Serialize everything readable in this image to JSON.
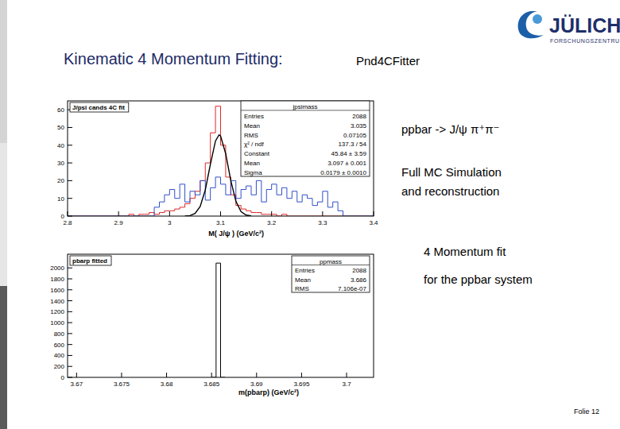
{
  "slide": {
    "title": "Kinematic 4 Momentum Fitting:",
    "subtitle": "Pnd4CFitter",
    "logo": {
      "name": "JÜLICH",
      "tagline": "FORSCHUNGSZENTRUM"
    },
    "notes": [
      "ppbar -> J/ψ π⁺π⁻",
      "Full MC Simulation",
      "and reconstruction",
      "4 Momentum fit",
      "for the ppbar system"
    ],
    "footer": "Folie 12"
  },
  "chart_data": [
    {
      "type": "histogram",
      "title": "J/psi cands 4C fit",
      "x_label": "M( J/ψ )    (GeV/c²)",
      "xlim": [
        2.8,
        3.4
      ],
      "xticks": [
        2.8,
        2.9,
        3,
        3.1,
        3.2,
        3.3,
        3.4
      ],
      "ylim": [
        0,
        65
      ],
      "yticks": [
        0,
        10,
        20,
        30,
        40,
        50,
        60
      ],
      "bins": [
        2.8,
        2.81,
        2.82,
        2.83,
        2.84,
        2.85,
        2.86,
        2.87,
        2.88,
        2.89,
        2.9,
        2.91,
        2.92,
        2.93,
        2.94,
        2.95,
        2.96,
        2.97,
        2.98,
        2.99,
        3.0,
        3.01,
        3.02,
        3.03,
        3.04,
        3.05,
        3.06,
        3.07,
        3.08,
        3.09,
        3.1,
        3.11,
        3.12,
        3.13,
        3.14,
        3.15,
        3.16,
        3.17,
        3.18,
        3.19,
        3.2,
        3.21,
        3.22,
        3.23,
        3.24,
        3.25,
        3.26,
        3.27,
        3.28,
        3.29,
        3.3,
        3.31,
        3.32,
        3.33,
        3.34,
        3.35,
        3.36,
        3.37,
        3.38,
        3.39,
        3.4
      ],
      "series": [
        {
          "color": "#e02828",
          "values": [
            0,
            0,
            0,
            0,
            0,
            0,
            0,
            0,
            0,
            0,
            0,
            0,
            1,
            0,
            1,
            1,
            2,
            1,
            2,
            3,
            3,
            4,
            5,
            7,
            10,
            14,
            20,
            30,
            47,
            62,
            40,
            22,
            12,
            6,
            4,
            3,
            2,
            2,
            1,
            1,
            1,
            0,
            1,
            0,
            0,
            0,
            0,
            0,
            0,
            0,
            0,
            0,
            0,
            0,
            0,
            0,
            0,
            0,
            0,
            0
          ]
        },
        {
          "color": "#3050c8",
          "values": [
            0,
            0,
            0,
            0,
            0,
            0,
            0,
            0,
            0,
            0,
            0,
            0,
            0,
            0,
            0,
            0,
            0,
            5,
            8,
            12,
            15,
            10,
            18,
            8,
            14,
            12,
            20,
            9,
            16,
            22,
            18,
            12,
            20,
            10,
            15,
            17,
            12,
            20,
            8,
            15,
            18,
            12,
            16,
            10,
            14,
            8,
            12,
            10,
            6,
            8,
            14,
            5,
            8,
            3,
            0,
            0,
            0,
            0,
            0,
            0
          ]
        },
        {
          "type": "line",
          "color": "#000000",
          "x": [
            3.03,
            3.04,
            3.05,
            3.06,
            3.07,
            3.08,
            3.09,
            3.097,
            3.1,
            3.11,
            3.12,
            3.13,
            3.14,
            3.15,
            3.16
          ],
          "values": [
            0.04,
            0.29,
            1.46,
            5.41,
            14.69,
            29.2,
            42.4,
            45.84,
            45.2,
            35.2,
            20.1,
            8.38,
            2.56,
            0.57,
            0.09
          ]
        }
      ],
      "stats": {
        "title": "jpsimass",
        "rows": [
          [
            "Entries",
            "2088"
          ],
          [
            "Mean",
            "3.035"
          ],
          [
            "RMS",
            "0.07105"
          ],
          [
            "χ² / ndf",
            "137.3 / 54"
          ],
          [
            "Constant",
            "45.84 ± 3.59"
          ],
          [
            "Mean",
            "3.097 ± 0.001"
          ],
          [
            "Sigma",
            "0.0179 ± 0.0010"
          ]
        ]
      }
    },
    {
      "type": "histogram",
      "title": "pbarp fitted",
      "x_label": "m(pbarp) (GeV/c²)",
      "xlim": [
        3.669,
        3.703
      ],
      "xticks": [
        3.67,
        3.675,
        3.68,
        3.685,
        3.69,
        3.695,
        3.7
      ],
      "ylim": [
        0,
        2250
      ],
      "yticks": [
        0,
        200,
        400,
        600,
        800,
        1000,
        1200,
        1400,
        1600,
        1800,
        2000
      ],
      "bins": [
        3.685,
        3.6855,
        3.686,
        3.6865
      ],
      "series": [
        {
          "color": "#000000",
          "values": [
            0,
            2088,
            0
          ]
        }
      ],
      "stats": {
        "title": "ppmass",
        "rows": [
          [
            "Entries",
            "2088"
          ],
          [
            "Mean",
            "3.686"
          ],
          [
            "RMS",
            "7.106e-07"
          ]
        ]
      }
    }
  ]
}
